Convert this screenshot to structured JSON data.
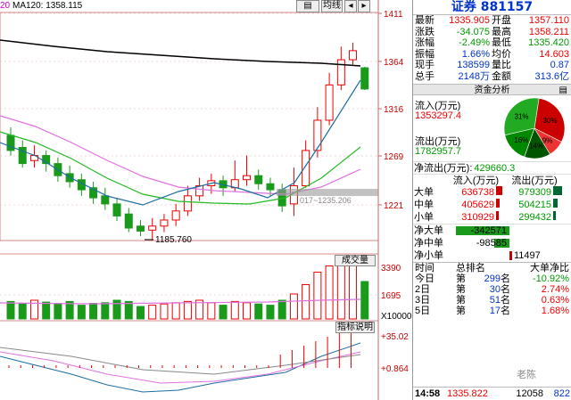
{
  "ma_label": "MA120: 1358.115",
  "ma_prefix": "20",
  "toolbar": {
    "btn1": "",
    "btn2": "均线",
    "btn3": "",
    "btn4": ""
  },
  "price_axis": [
    "1411",
    "1364",
    "1316",
    "1269",
    "1221"
  ],
  "low_label": "1185.760",
  "highlight_label": "017~1235.206",
  "volume_panel": {
    "title": "成交量",
    "axis": [
      "3390",
      "1695",
      "X10000"
    ]
  },
  "indicator_panel": {
    "title": "指标说明",
    "axis": [
      "+35.02",
      "+0.864"
    ]
  },
  "quote": {
    "title": "证券 881157",
    "rows": [
      {
        "l1": "最新",
        "v1": "1335.905",
        "c1": "red",
        "l2": "开盘",
        "v2": "1357.110",
        "c2": "red"
      },
      {
        "l1": "涨跌",
        "v1": "-34.075",
        "c1": "green",
        "l2": "最高",
        "v2": "1358.211",
        "c2": "red"
      },
      {
        "l1": "涨幅",
        "v1": "-2.49%",
        "c1": "green",
        "l2": "最低",
        "v2": "1335.420",
        "c2": "green"
      },
      {
        "l1": "振幅",
        "v1": "1.66%",
        "c1": "blue",
        "l2": "均价",
        "v2": "14.603",
        "c2": "red"
      },
      {
        "l1": "现手",
        "v1": "138599",
        "c1": "blue",
        "l2": "量比",
        "v2": "0.87",
        "c2": "blue"
      },
      {
        "l1": "总手",
        "v1": "2148万",
        "c1": "blue",
        "l2": "金额",
        "v2": "313.6亿",
        "c2": "blue"
      }
    ]
  },
  "fund_analysis": {
    "title": "资金分析",
    "inflow_label": "流入(万元)",
    "inflow_value": "1353297.4",
    "outflow_label": "流出(万元)",
    "outflow_value": "1782957.7",
    "net_label": "净流出(万元):",
    "net_value": "429660.3",
    "pie": [
      {
        "label": "30%",
        "value": 30,
        "color": "#cc0000"
      },
      {
        "label": "9%",
        "value": 9,
        "color": "#ee3333"
      },
      {
        "label": "31%",
        "value": 31,
        "color": "#22aa22"
      },
      {
        "label": "16%",
        "value": 16,
        "color": "#008800"
      },
      {
        "label": "14%",
        "value": 14,
        "color": "#005500"
      }
    ],
    "pie_visible_labels": [
      "30%",
      "31%",
      "9%",
      "16%",
      "14%"
    ],
    "col_in": "流入(万元)",
    "col_out": "流出(万元)",
    "orders": [
      {
        "label": "大单",
        "in": "636738",
        "out": "979309",
        "in_frac": 0.65,
        "out_frac": 1.0
      },
      {
        "label": "中单",
        "in": "405629",
        "out": "504215",
        "in_frac": 0.41,
        "out_frac": 0.51
      },
      {
        "label": "小单",
        "in": "310929",
        "out": "299432",
        "in_frac": 0.32,
        "out_frac": 0.31
      }
    ],
    "net": [
      {
        "label": "净大单",
        "value": "-342571",
        "color": "#090",
        "frac": -1.0
      },
      {
        "label": "净中单",
        "value": "-98585",
        "color": "#090",
        "frac": -0.29
      },
      {
        "label": "净小单",
        "value": "11497",
        "color": "#e00",
        "frac": 0.03
      }
    ]
  },
  "ranking": {
    "headers": [
      "时间",
      "总排名",
      "大单净比"
    ],
    "rows": [
      {
        "t": "今日",
        "p": "第",
        "r": "299",
        "s": "名",
        "v": "-10.92%",
        "c": "green"
      },
      {
        "t": "2日",
        "p": "第",
        "r": "30",
        "s": "名",
        "v": "2.74%",
        "c": "red"
      },
      {
        "t": "3日",
        "p": "第",
        "r": "51",
        "s": "名",
        "v": "0.63%",
        "c": "red"
      },
      {
        "t": "5日",
        "p": "第",
        "r": "17",
        "s": "名",
        "v": "1.68%",
        "c": "red"
      }
    ]
  },
  "bottom": {
    "time": "14:58",
    "price": "1335.822",
    "vol": "12058",
    "extra": "822"
  },
  "watermark": "老陈"
}
